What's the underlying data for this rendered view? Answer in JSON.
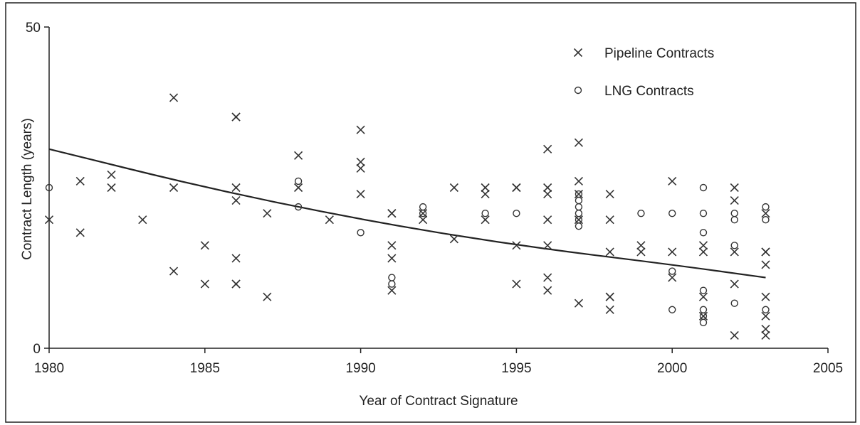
{
  "chart_data": {
    "type": "scatter",
    "title": "",
    "xlabel": "Year of Contract Signature",
    "ylabel": "Contract Length (years)",
    "xlim": [
      1980,
      2005
    ],
    "ylim": [
      0,
      50
    ],
    "xticks": [
      "1980",
      "1985",
      "1990",
      "1995",
      "2000",
      "2005"
    ],
    "yticks": [
      "0",
      "50"
    ],
    "grid": false,
    "legend_position": "top-right",
    "series": [
      {
        "name": "Pipeline Contracts",
        "marker": "x",
        "color": "#333333",
        "points": [
          [
            1980,
            20
          ],
          [
            1981,
            26
          ],
          [
            1981,
            18
          ],
          [
            1982,
            27
          ],
          [
            1982,
            25
          ],
          [
            1983,
            20
          ],
          [
            1984,
            39
          ],
          [
            1984,
            25
          ],
          [
            1984,
            12
          ],
          [
            1985,
            16
          ],
          [
            1985,
            10
          ],
          [
            1986,
            36
          ],
          [
            1986,
            36
          ],
          [
            1986,
            25
          ],
          [
            1986,
            23
          ],
          [
            1986,
            14
          ],
          [
            1986,
            10
          ],
          [
            1986,
            10
          ],
          [
            1987,
            21
          ],
          [
            1987,
            8
          ],
          [
            1988,
            30
          ],
          [
            1988,
            25
          ],
          [
            1989,
            20
          ],
          [
            1990,
            34
          ],
          [
            1990,
            29
          ],
          [
            1990,
            28
          ],
          [
            1990,
            24
          ],
          [
            1991,
            21
          ],
          [
            1991,
            21
          ],
          [
            1991,
            16
          ],
          [
            1991,
            14
          ],
          [
            1991,
            9
          ],
          [
            1992,
            21
          ],
          [
            1992,
            20
          ],
          [
            1993,
            25
          ],
          [
            1993,
            17
          ],
          [
            1994,
            25
          ],
          [
            1994,
            24
          ],
          [
            1994,
            20
          ],
          [
            1995,
            25
          ],
          [
            1995,
            25
          ],
          [
            1995,
            16
          ],
          [
            1995,
            10
          ],
          [
            1996,
            31
          ],
          [
            1996,
            25
          ],
          [
            1996,
            24
          ],
          [
            1996,
            20
          ],
          [
            1996,
            16
          ],
          [
            1996,
            11
          ],
          [
            1996,
            9
          ],
          [
            1997,
            32
          ],
          [
            1997,
            26
          ],
          [
            1997,
            24
          ],
          [
            1997,
            20
          ],
          [
            1997,
            7
          ],
          [
            1998,
            24
          ],
          [
            1998,
            20
          ],
          [
            1998,
            15
          ],
          [
            1998,
            8
          ],
          [
            1998,
            8
          ],
          [
            1998,
            6
          ],
          [
            1999,
            16
          ],
          [
            1999,
            15
          ],
          [
            2000,
            26
          ],
          [
            2000,
            15
          ],
          [
            2000,
            11
          ],
          [
            2001,
            16
          ],
          [
            2001,
            15
          ],
          [
            2001,
            8
          ],
          [
            2001,
            5
          ],
          [
            2002,
            25
          ],
          [
            2002,
            23
          ],
          [
            2002,
            15
          ],
          [
            2002,
            10
          ],
          [
            2002,
            2
          ],
          [
            2003,
            21
          ],
          [
            2003,
            15
          ],
          [
            2003,
            15
          ],
          [
            2003,
            13
          ],
          [
            2003,
            8
          ],
          [
            2003,
            5
          ],
          [
            2003,
            3
          ],
          [
            2003,
            2
          ]
        ]
      },
      {
        "name": "LNG Contracts",
        "marker": "o",
        "color": "#333333",
        "points": [
          [
            1980,
            25
          ],
          [
            1988,
            26
          ],
          [
            1988,
            22
          ],
          [
            1990,
            18
          ],
          [
            1991,
            11
          ],
          [
            1991,
            10
          ],
          [
            1992,
            22
          ],
          [
            1992,
            21
          ],
          [
            1994,
            21
          ],
          [
            1995,
            21
          ],
          [
            1997,
            24
          ],
          [
            1997,
            23
          ],
          [
            1997,
            22
          ],
          [
            1997,
            21
          ],
          [
            1997,
            20
          ],
          [
            1997,
            19
          ],
          [
            1999,
            21
          ],
          [
            2000,
            21
          ],
          [
            2000,
            12
          ],
          [
            2000,
            6
          ],
          [
            2001,
            25
          ],
          [
            2001,
            21
          ],
          [
            2001,
            18
          ],
          [
            2001,
            9
          ],
          [
            2001,
            6
          ],
          [
            2001,
            5
          ],
          [
            2001,
            4
          ],
          [
            2002,
            21
          ],
          [
            2002,
            20
          ],
          [
            2002,
            16
          ],
          [
            2002,
            7
          ],
          [
            2003,
            22
          ],
          [
            2003,
            20
          ],
          [
            2003,
            6
          ]
        ]
      }
    ],
    "trendline": {
      "type": "curve",
      "color": "#222222",
      "points": [
        [
          1980,
          31
        ],
        [
          1985,
          25
        ],
        [
          1990,
          20
        ],
        [
          1995,
          16
        ],
        [
          2000,
          13
        ],
        [
          2003,
          11
        ]
      ]
    }
  }
}
